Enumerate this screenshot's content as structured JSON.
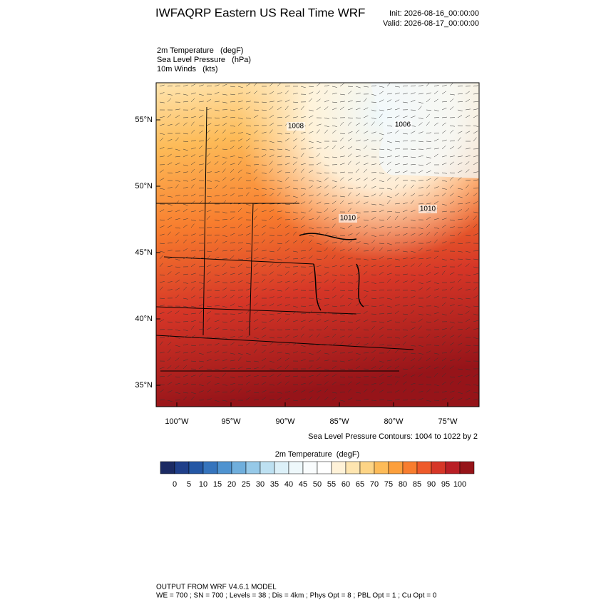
{
  "header": {
    "title": "IWFAQRP Eastern US Real Time WRF",
    "init": "Init: 2026-08-16_00:00:00",
    "valid": "Valid: 2026-08-17_00:00:00"
  },
  "fields": [
    "2m Temperature   (degF)",
    "Sea Level Pressure   (hPa)",
    "10m Winds   (kts)"
  ],
  "map": {
    "lat_ticks": [
      {
        "value": 55,
        "label": "55°N"
      },
      {
        "value": 50,
        "label": "50°N"
      },
      {
        "value": 45,
        "label": "45°N"
      },
      {
        "value": 40,
        "label": "40°N"
      },
      {
        "value": 35,
        "label": "35°N"
      }
    ],
    "lon_ticks": [
      {
        "value": -100,
        "label": "100°W"
      },
      {
        "value": -95,
        "label": "95°W"
      },
      {
        "value": -90,
        "label": "90°W"
      },
      {
        "value": -85,
        "label": "85°W"
      },
      {
        "value": -80,
        "label": "80°W"
      },
      {
        "value": -75,
        "label": "75°W"
      }
    ],
    "contour_labels": [
      1008,
      1006,
      1010,
      1010
    ],
    "contour_note": "Sea Level Pressure Contours: 1004 to 1022 by 2"
  },
  "colorbar": {
    "title": "2m Temperature  (degF)",
    "colors": [
      "#1b2a63",
      "#1f3f8a",
      "#2457a5",
      "#3574bd",
      "#4f93d0",
      "#6faedc",
      "#96c9e8",
      "#bde0f1",
      "#dcf0f8",
      "#eef8fb",
      "#f9fcfd",
      "#ffffff",
      "#fff2d8",
      "#fee5b0",
      "#fdd485",
      "#fdbb58",
      "#fc9f3c",
      "#f87d2e",
      "#ee5a2a",
      "#d63627",
      "#b91e25",
      "#961419"
    ],
    "labels": [
      0,
      5,
      10,
      15,
      20,
      25,
      30,
      35,
      40,
      45,
      50,
      55,
      60,
      65,
      70,
      75,
      80,
      85,
      90,
      95,
      100
    ]
  },
  "footer": {
    "line1": "OUTPUT FROM WRF V4.6.1 MODEL",
    "line2": "WE = 700 ; SN = 700 ; Levels = 38 ; Dis = 4km ; Phys Opt = 8 ; PBL Opt = 1 ; Cu Opt = 0"
  }
}
